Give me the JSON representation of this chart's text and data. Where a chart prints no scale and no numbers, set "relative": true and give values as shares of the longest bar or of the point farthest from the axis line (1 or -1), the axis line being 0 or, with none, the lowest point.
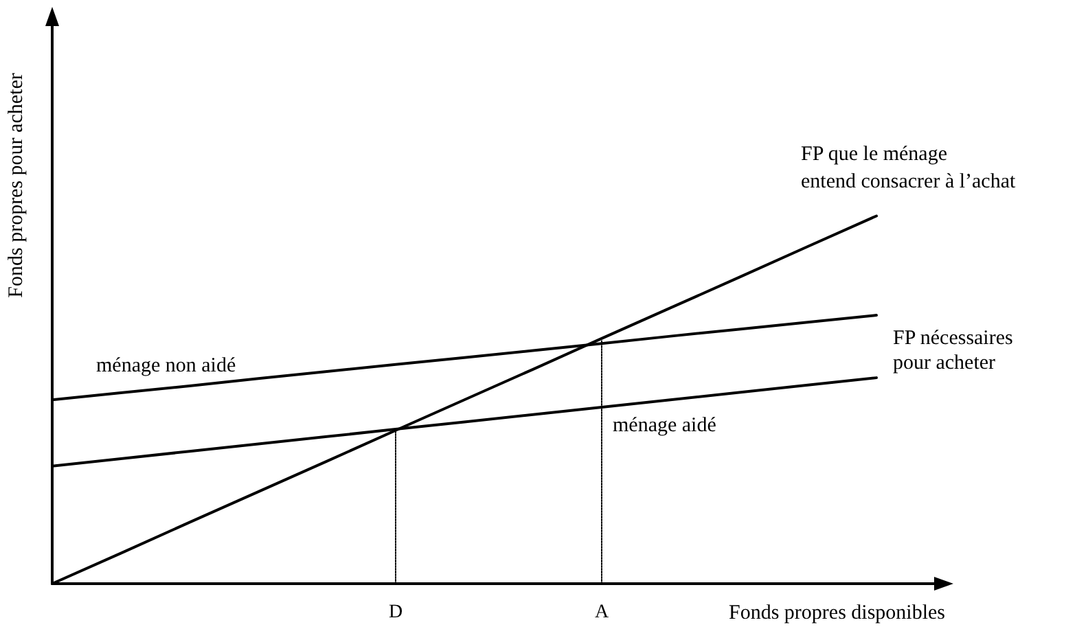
{
  "chart_data": {
    "type": "line",
    "relative": true,
    "xlabel": "Fonds propres disponibles",
    "ylabel": "Fonds propres pour acheter",
    "categories": [
      null,
      null,
      null,
      null,
      null,
      "D",
      null,
      null,
      "A",
      null,
      null,
      null,
      null,
      null
    ],
    "series": [
      {
        "name": "FP que le ménage entend consacrer à l’achat",
        "color": "#000000",
        "values": [
          0,
          0.083,
          0.167,
          0.25,
          0.333,
          0.417,
          0.5,
          0.583,
          0.667,
          0.75,
          0.833,
          0.917,
          1,
          null
        ]
      },
      {
        "name": "ménage non aidé",
        "color": "#000000",
        "values": [
          0.5,
          0.519,
          0.538,
          0.558,
          0.577,
          0.596,
          0.615,
          0.634,
          0.653,
          0.673,
          0.692,
          0.711,
          0.73,
          null
        ]
      },
      {
        "name": "ménage aidé",
        "color": "#000000",
        "values": [
          0.32,
          0.34,
          0.36,
          0.38,
          0.4,
          0.42,
          0.44,
          0.46,
          0.48,
          0.5,
          0.52,
          0.54,
          0.56,
          null
        ]
      },
      {
        "color": "#000000",
        "line_style": "dotted",
        "x": [
          "D",
          "D"
        ],
        "values": [
          0,
          0.42
        ]
      },
      {
        "color": "#000000",
        "line_style": "dotted",
        "x": [
          "A",
          "A"
        ],
        "values": [
          0,
          0.66
        ]
      }
    ],
    "annotations": [
      "FP nécessaires\npour acheter"
    ],
    "marker": "none",
    "line_style": "solid",
    "grid": false,
    "legend": false
  }
}
